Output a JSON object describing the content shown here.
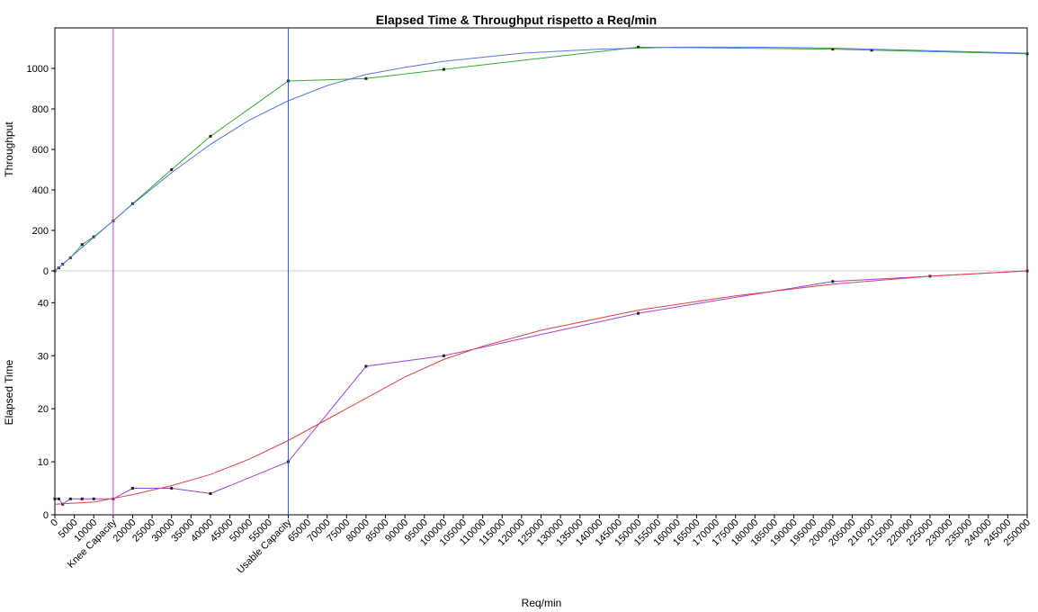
{
  "chart_data": {
    "type": "line",
    "title": "Elapsed Time & Throughput rispetto a Req/min",
    "xlabel": "Req/min",
    "xlim": [
      0,
      250000
    ],
    "x_tick_step": 5000,
    "x_tick_labels_overrides": {
      "15000": "Knee Capacity",
      "60000": "Usable Capacity"
    },
    "markers": [
      {
        "x": 15000,
        "label": "Knee Capacity",
        "color": "#cc44cc"
      },
      {
        "x": 60000,
        "label": "Usable Capacity",
        "color": "#3355dd"
      }
    ],
    "panels": [
      {
        "name": "throughput",
        "ylabel": "Throughput",
        "ylim": [
          0,
          1200
        ],
        "yticks": [
          0,
          200,
          400,
          600,
          800,
          1000
        ],
        "series": [
          {
            "kind": "measured",
            "color": "#33aa33",
            "points": [
              [
                0,
                0
              ],
              [
                1000,
                15
              ],
              [
                2000,
                33
              ],
              [
                4000,
                65
              ],
              [
                7000,
                130
              ],
              [
                10000,
                168
              ],
              [
                15000,
                247
              ],
              [
                20000,
                332
              ],
              [
                30000,
                500
              ],
              [
                40000,
                665
              ],
              [
                60000,
                938
              ],
              [
                80000,
                950
              ],
              [
                100000,
                995
              ],
              [
                150000,
                1105
              ],
              [
                200000,
                1095
              ],
              [
                210000,
                1090
              ],
              [
                250000,
                1072
              ]
            ]
          },
          {
            "kind": "fit",
            "color": "#5577dd",
            "points": [
              [
                0,
                0
              ],
              [
                10000,
                165
              ],
              [
                20000,
                330
              ],
              [
                30000,
                485
              ],
              [
                40000,
                625
              ],
              [
                50000,
                745
              ],
              [
                60000,
                840
              ],
              [
                70000,
                915
              ],
              [
                80000,
                970
              ],
              [
                90000,
                1005
              ],
              [
                100000,
                1035
              ],
              [
                120000,
                1075
              ],
              [
                140000,
                1095
              ],
              [
                160000,
                1105
              ],
              [
                180000,
                1105
              ],
              [
                200000,
                1100
              ],
              [
                220000,
                1090
              ],
              [
                250000,
                1075
              ]
            ]
          }
        ]
      },
      {
        "name": "elapsed",
        "ylabel": "Elapsed Time",
        "ylim": [
          0,
          46
        ],
        "yticks": [
          0,
          10,
          20,
          30,
          40
        ],
        "series": [
          {
            "kind": "measured",
            "color": "#9944dd",
            "points": [
              [
                0,
                3
              ],
              [
                1000,
                3
              ],
              [
                2000,
                2
              ],
              [
                4000,
                3
              ],
              [
                7000,
                3
              ],
              [
                10000,
                3
              ],
              [
                15000,
                3
              ],
              [
                20000,
                5
              ],
              [
                30000,
                5
              ],
              [
                40000,
                4
              ],
              [
                60000,
                10
              ],
              [
                80000,
                28
              ],
              [
                100000,
                30
              ],
              [
                150000,
                38
              ],
              [
                200000,
                44
              ],
              [
                225000,
                45
              ],
              [
                250000,
                46
              ]
            ]
          },
          {
            "kind": "fit",
            "color": "#dd4444",
            "points": [
              [
                0,
                2
              ],
              [
                10000,
                2.4
              ],
              [
                20000,
                3.8
              ],
              [
                30000,
                5.5
              ],
              [
                40000,
                7.6
              ],
              [
                50000,
                10.5
              ],
              [
                60000,
                14
              ],
              [
                70000,
                18
              ],
              [
                80000,
                22
              ],
              [
                90000,
                26
              ],
              [
                100000,
                29.3
              ],
              [
                110000,
                31.8
              ],
              [
                125000,
                34.8
              ],
              [
                150000,
                38.6
              ],
              [
                175000,
                41.3
              ],
              [
                200000,
                43.5
              ],
              [
                225000,
                45
              ],
              [
                250000,
                46
              ]
            ]
          }
        ]
      }
    ]
  }
}
